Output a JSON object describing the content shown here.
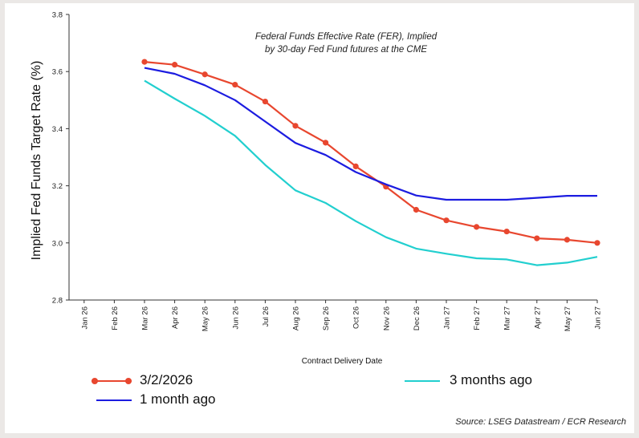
{
  "chart_data": {
    "type": "line",
    "title_lines": [
      "Federal Funds Effective Rate (FER), Implied",
      "by 30-day Fed Fund futures at the CME"
    ],
    "xlabel": "Contract Delivery Date",
    "ylabel": "Implied Fed Funds Target Rate (%)",
    "categories": [
      "Jan 26",
      "Feb 26",
      "Mar 26",
      "Apr 26",
      "May 26",
      "Jun 26",
      "Jul 26",
      "Aug 26",
      "Sep 26",
      "Oct 26",
      "Nov 26",
      "Dec 26",
      "Jan 27",
      "Feb 27",
      "Mar 27",
      "Apr 27",
      "May 27",
      "Jun 27"
    ],
    "ylim": [
      2.8,
      3.8
    ],
    "yticks": [
      "2.8",
      "3.0",
      "3.2",
      "3.4",
      "3.6",
      "3.8"
    ],
    "series": [
      {
        "name": "3/2/2026",
        "color": "#e8472f",
        "markers": true,
        "values": [
          null,
          null,
          3.634,
          3.624,
          3.59,
          3.554,
          3.495,
          3.41,
          3.351,
          3.268,
          3.197,
          3.116,
          3.079,
          3.056,
          3.04,
          3.016,
          3.011,
          3.0
        ]
      },
      {
        "name": "1 month ago",
        "color": "#1c1ce0",
        "markers": false,
        "values": [
          null,
          null,
          3.613,
          3.592,
          3.552,
          3.5,
          3.425,
          3.35,
          3.308,
          3.248,
          3.205,
          3.166,
          3.151,
          3.151,
          3.151,
          3.158,
          3.165,
          3.165
        ]
      },
      {
        "name": "3 months ago",
        "color": "#22cfcf",
        "markers": false,
        "values": [
          null,
          null,
          3.568,
          3.505,
          3.445,
          3.375,
          3.273,
          3.184,
          3.14,
          3.076,
          3.02,
          2.98,
          2.962,
          2.946,
          2.942,
          2.922,
          2.931,
          2.951
        ]
      }
    ],
    "grid": false,
    "legend_position": "bottom"
  },
  "source": "Source: LSEG Datastream / ECR Research"
}
